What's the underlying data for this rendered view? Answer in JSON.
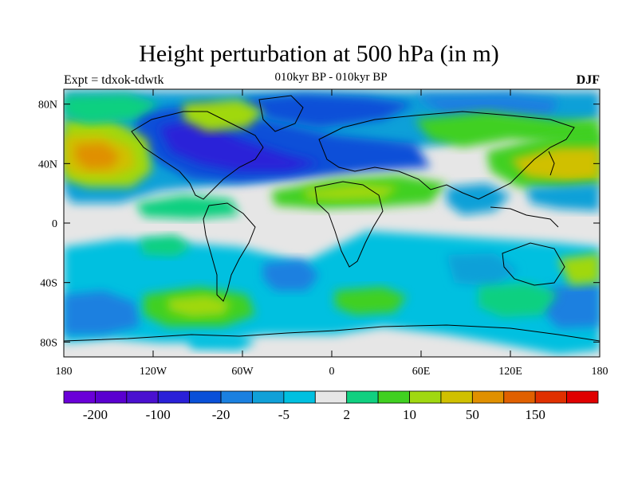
{
  "title": "Height perturbation at 500 hPa (in m)",
  "subtitle_left": "Expt = tdxok-tdwtk",
  "subtitle_center": "010kyr BP - 010kyr BP",
  "subtitle_right": "DJF",
  "x_ticks": [
    {
      "value": -180,
      "label": "180"
    },
    {
      "value": -120,
      "label": "120W"
    },
    {
      "value": -60,
      "label": "60W"
    },
    {
      "value": 0,
      "label": "0"
    },
    {
      "value": 60,
      "label": "60E"
    },
    {
      "value": 120,
      "label": "120E"
    },
    {
      "value": 180,
      "label": "180"
    }
  ],
  "y_ticks": [
    {
      "value": 80,
      "label": "80N"
    },
    {
      "value": 40,
      "label": "40N"
    },
    {
      "value": 0,
      "label": "0"
    },
    {
      "value": -40,
      "label": "40S"
    },
    {
      "value": -80,
      "label": "80S"
    }
  ],
  "colorbar": {
    "colors": [
      "#6a00d8",
      "#5a00d0",
      "#4a10d0",
      "#2a20d8",
      "#0a50d8",
      "#1a80e0",
      "#10a0d8",
      "#00c0e0",
      "#e6e6e6",
      "#10d080",
      "#40d020",
      "#a0d810",
      "#d0c000",
      "#e09000",
      "#e06000",
      "#e03000",
      "#e00000"
    ],
    "labels": [
      {
        "index": 1,
        "text": "-200"
      },
      {
        "index": 3,
        "text": "-100"
      },
      {
        "index": 5,
        "text": "-20"
      },
      {
        "index": 7,
        "text": "-5"
      },
      {
        "index": 9,
        "text": "2"
      },
      {
        "index": 11,
        "text": "10"
      },
      {
        "index": 13,
        "text": "50"
      },
      {
        "index": 15,
        "text": "150"
      }
    ]
  },
  "colors": {
    "background": "#e6e6e6",
    "land_outline": "#000000"
  }
}
